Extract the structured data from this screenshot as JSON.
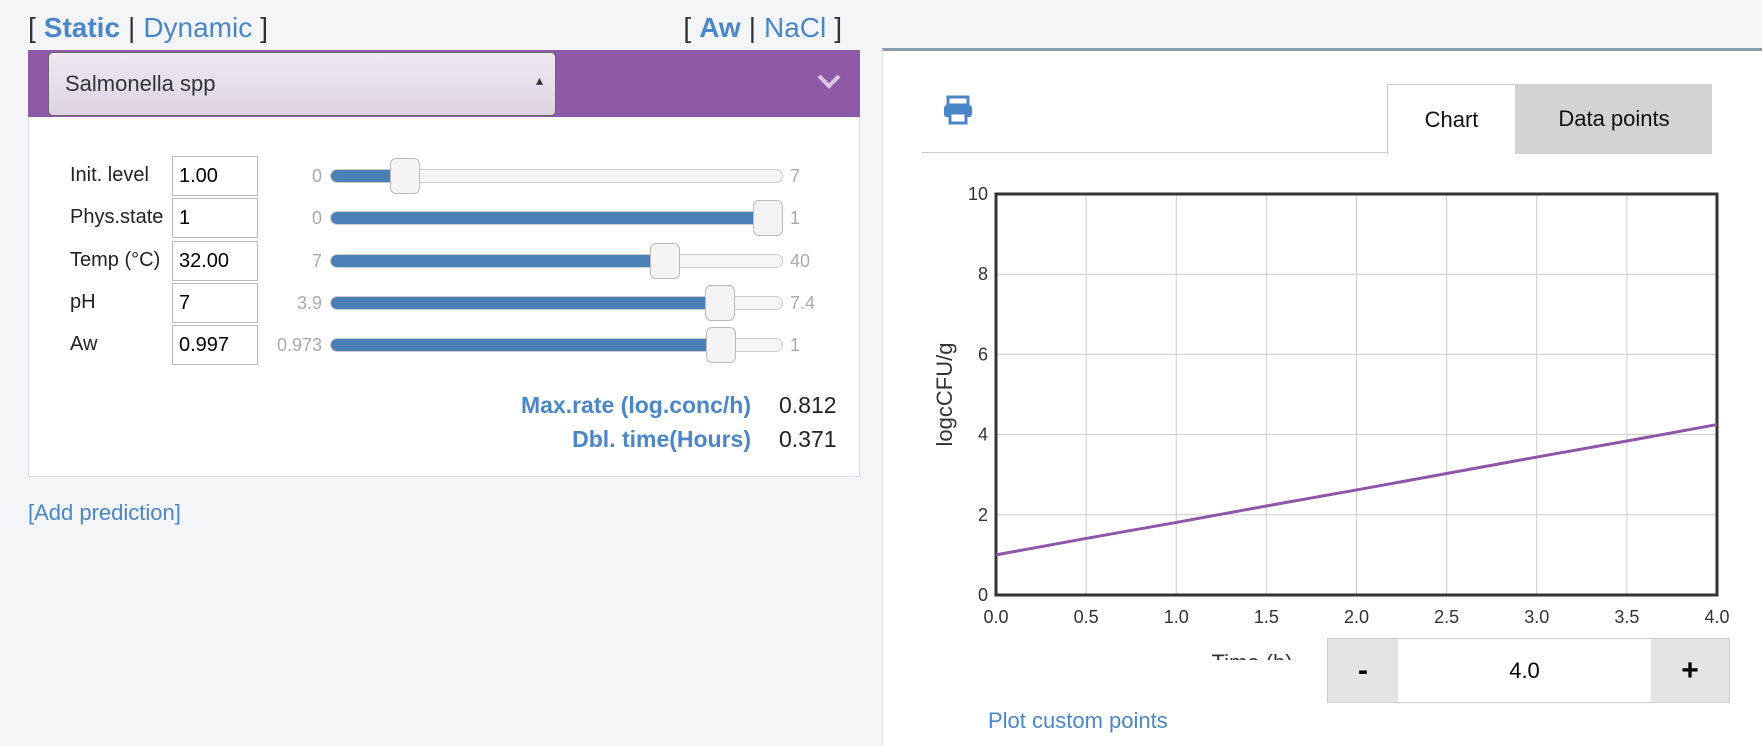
{
  "header": {
    "mode": [
      "[",
      "Static",
      "|",
      "Dynamic",
      "]"
    ],
    "water": [
      "[",
      "Aw",
      "|",
      "NaCl",
      "]"
    ]
  },
  "organism": "Salmonella spp",
  "parameters": [
    {
      "label": "Init. level",
      "value": "1.00",
      "min": "0",
      "max": "7"
    },
    {
      "label": "Phys.state",
      "value": "1",
      "min": "0",
      "max": "1"
    },
    {
      "label": "Temp (°C)",
      "value": "32.00",
      "min": "7",
      "max": "40"
    },
    {
      "label": "pH",
      "value": "7",
      "min": "3.9",
      "max": "7.4"
    },
    {
      "label": "Aw",
      "value": "0.997",
      "min": "0.973",
      "max": "1"
    }
  ],
  "results": [
    {
      "label": "Max.rate (log.conc/h)",
      "value": "0.812"
    },
    {
      "label": "Dbl. time(Hours)",
      "value": "0.371"
    }
  ],
  "add_prediction": "[Add prediction]",
  "tabs": [
    "Chart",
    "Data points"
  ],
  "chart_data": {
    "type": "line",
    "x": [
      0,
      0.5,
      1,
      1.5,
      2,
      2.5,
      3,
      3.5,
      4
    ],
    "series": [
      {
        "name": "Salmonella spp",
        "color": "#8e55a8",
        "values": [
          1.0,
          1.41,
          1.81,
          2.22,
          2.62,
          3.03,
          3.44,
          3.84,
          4.25
        ]
      }
    ],
    "xlabel": "Time (h)",
    "ylabel": "logcCFU/g",
    "xlim": [
      0,
      4
    ],
    "ylim": [
      0,
      10
    ],
    "xticks": [
      {
        "value": 0,
        "label": "0.0"
      },
      0.5,
      {
        "value": 1,
        "label": "1.0"
      },
      1.5,
      {
        "value": 2,
        "label": "2.0"
      },
      2.5,
      {
        "value": 3,
        "label": "3.0"
      },
      3.5,
      {
        "value": 4,
        "label": "4.0"
      }
    ],
    "yticks": [
      0,
      2,
      4,
      6,
      8,
      10
    ],
    "grid": true
  },
  "time_control": {
    "minus": "-",
    "value": "4.0",
    "plus": "+"
  },
  "plot_custom": "Plot custom points"
}
